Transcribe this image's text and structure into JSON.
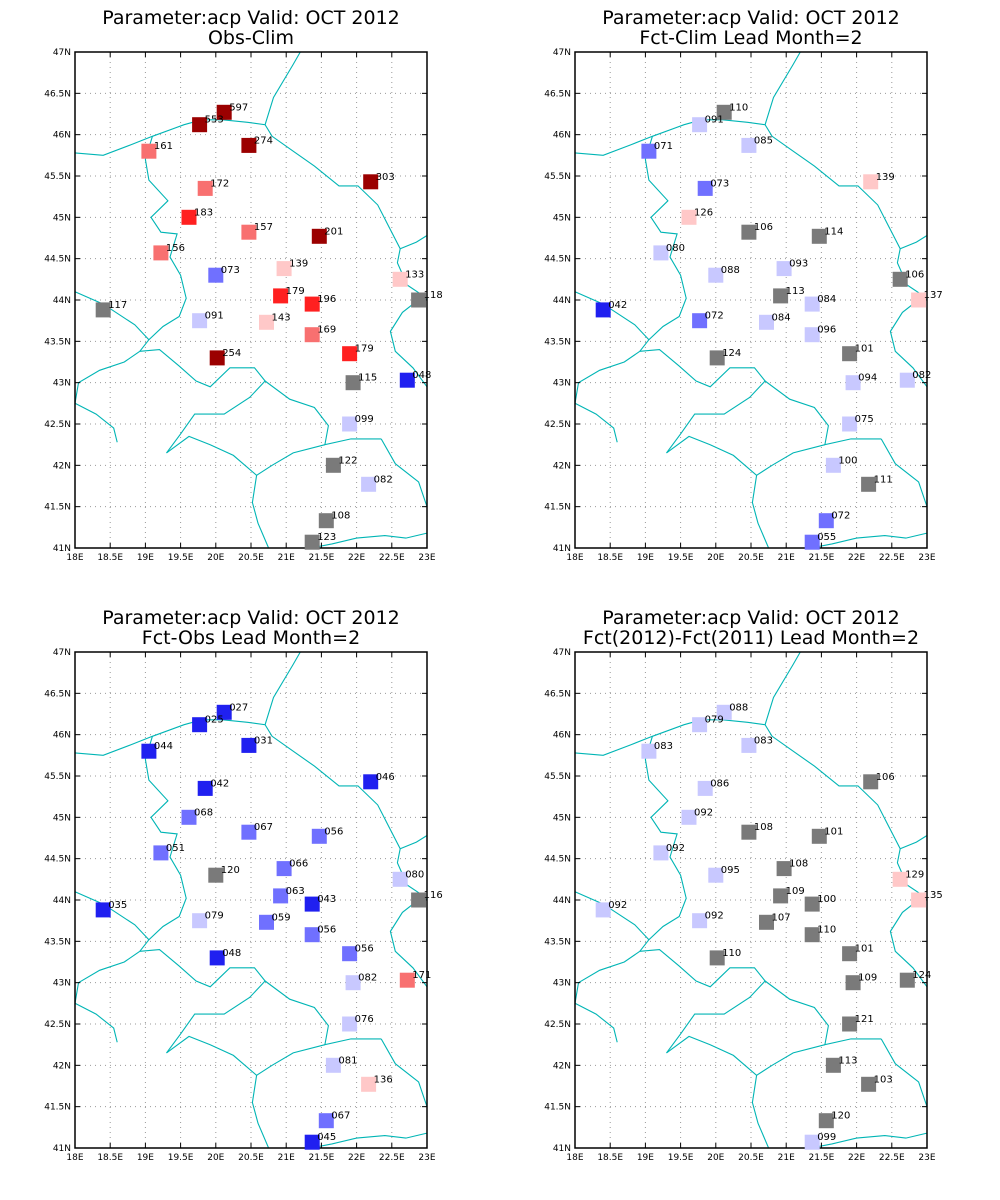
{
  "colors": {
    "strong_red": "#9b0000",
    "red": "#ff2020",
    "salmon": "#f87070",
    "pink": "#ffc8c8",
    "light_blue": "#c8c8ff",
    "mid_blue": "#7070ff",
    "blue": "#2020f0",
    "neutral": "#7a7a7a",
    "border": "#00b5b5"
  },
  "axes": {
    "lon_range": [
      18,
      23
    ],
    "lat_range": [
      41,
      47
    ],
    "lon_ticks": [
      "18E",
      "18.5E",
      "19E",
      "19.5E",
      "20E",
      "20.5E",
      "21E",
      "21.5E",
      "22E",
      "22.5E",
      "23E"
    ],
    "lat_ticks": [
      "41N",
      "41.5N",
      "42N",
      "42.5N",
      "43N",
      "43.5N",
      "44N",
      "44.5N",
      "45N",
      "45.5N",
      "46N",
      "46.5N",
      "47N"
    ]
  },
  "panels": [
    {
      "title_line1": "Parameter:acp Valid: OCT 2012",
      "title_line2": "Obs-Clim",
      "stations": [
        {
          "lon": 20.12,
          "lat": 46.27,
          "label": "597",
          "color": "strong_red"
        },
        {
          "lon": 19.77,
          "lat": 46.12,
          "label": "553",
          "color": "strong_red"
        },
        {
          "lon": 20.47,
          "lat": 45.87,
          "label": "274",
          "color": "strong_red"
        },
        {
          "lon": 19.05,
          "lat": 45.8,
          "label": "161",
          "color": "salmon"
        },
        {
          "lon": 22.2,
          "lat": 45.43,
          "label": "303",
          "color": "strong_red"
        },
        {
          "lon": 19.85,
          "lat": 45.35,
          "label": "172",
          "color": "salmon"
        },
        {
          "lon": 19.62,
          "lat": 45.0,
          "label": "183",
          "color": "red"
        },
        {
          "lon": 20.47,
          "lat": 44.82,
          "label": "157",
          "color": "salmon"
        },
        {
          "lon": 21.47,
          "lat": 44.77,
          "label": "201",
          "color": "strong_red"
        },
        {
          "lon": 19.22,
          "lat": 44.57,
          "label": "156",
          "color": "salmon"
        },
        {
          "lon": 20.0,
          "lat": 44.3,
          "label": "073",
          "color": "mid_blue"
        },
        {
          "lon": 20.97,
          "lat": 44.38,
          "label": "139",
          "color": "pink"
        },
        {
          "lon": 22.62,
          "lat": 44.25,
          "label": "133",
          "color": "pink"
        },
        {
          "lon": 20.92,
          "lat": 44.05,
          "label": "179",
          "color": "red"
        },
        {
          "lon": 21.37,
          "lat": 43.95,
          "label": "196",
          "color": "red"
        },
        {
          "lon": 22.88,
          "lat": 44.0,
          "label": "118",
          "color": "neutral"
        },
        {
          "lon": 18.4,
          "lat": 43.88,
          "label": "117",
          "color": "neutral"
        },
        {
          "lon": 19.77,
          "lat": 43.75,
          "label": "091",
          "color": "light_blue"
        },
        {
          "lon": 20.72,
          "lat": 43.73,
          "label": "143",
          "color": "pink"
        },
        {
          "lon": 21.37,
          "lat": 43.58,
          "label": "169",
          "color": "salmon"
        },
        {
          "lon": 21.9,
          "lat": 43.35,
          "label": "179",
          "color": "red"
        },
        {
          "lon": 20.02,
          "lat": 43.3,
          "label": "254",
          "color": "strong_red"
        },
        {
          "lon": 21.95,
          "lat": 43.0,
          "label": "115",
          "color": "neutral"
        },
        {
          "lon": 22.72,
          "lat": 43.03,
          "label": "048",
          "color": "blue"
        },
        {
          "lon": 21.9,
          "lat": 42.5,
          "label": "099",
          "color": "light_blue"
        },
        {
          "lon": 21.67,
          "lat": 42.0,
          "label": "122",
          "color": "neutral"
        },
        {
          "lon": 22.17,
          "lat": 41.77,
          "label": "082",
          "color": "light_blue"
        },
        {
          "lon": 21.57,
          "lat": 41.33,
          "label": "108",
          "color": "neutral"
        },
        {
          "lon": 21.37,
          "lat": 41.07,
          "label": "123",
          "color": "neutral"
        }
      ]
    },
    {
      "title_line1": "Parameter:acp Valid: OCT 2012",
      "title_line2": "Fct-Clim Lead Month=2",
      "stations": [
        {
          "lon": 20.12,
          "lat": 46.27,
          "label": "110",
          "color": "neutral"
        },
        {
          "lon": 19.77,
          "lat": 46.12,
          "label": "091",
          "color": "light_blue"
        },
        {
          "lon": 20.47,
          "lat": 45.87,
          "label": "085",
          "color": "light_blue"
        },
        {
          "lon": 19.05,
          "lat": 45.8,
          "label": "071",
          "color": "mid_blue"
        },
        {
          "lon": 22.2,
          "lat": 45.43,
          "label": "139",
          "color": "pink"
        },
        {
          "lon": 19.85,
          "lat": 45.35,
          "label": "073",
          "color": "mid_blue"
        },
        {
          "lon": 19.62,
          "lat": 45.0,
          "label": "126",
          "color": "pink"
        },
        {
          "lon": 20.47,
          "lat": 44.82,
          "label": "106",
          "color": "neutral"
        },
        {
          "lon": 21.47,
          "lat": 44.77,
          "label": "114",
          "color": "neutral"
        },
        {
          "lon": 19.22,
          "lat": 44.57,
          "label": "080",
          "color": "light_blue"
        },
        {
          "lon": 20.0,
          "lat": 44.3,
          "label": "088",
          "color": "light_blue"
        },
        {
          "lon": 20.97,
          "lat": 44.38,
          "label": "093",
          "color": "light_blue"
        },
        {
          "lon": 22.62,
          "lat": 44.25,
          "label": "106",
          "color": "neutral"
        },
        {
          "lon": 20.92,
          "lat": 44.05,
          "label": "113",
          "color": "neutral"
        },
        {
          "lon": 21.37,
          "lat": 43.95,
          "label": "084",
          "color": "light_blue"
        },
        {
          "lon": 22.88,
          "lat": 44.0,
          "label": "137",
          "color": "pink"
        },
        {
          "lon": 18.4,
          "lat": 43.88,
          "label": "042",
          "color": "blue"
        },
        {
          "lon": 19.77,
          "lat": 43.75,
          "label": "072",
          "color": "mid_blue"
        },
        {
          "lon": 20.72,
          "lat": 43.73,
          "label": "084",
          "color": "light_blue"
        },
        {
          "lon": 21.37,
          "lat": 43.58,
          "label": "096",
          "color": "light_blue"
        },
        {
          "lon": 21.9,
          "lat": 43.35,
          "label": "101",
          "color": "neutral"
        },
        {
          "lon": 20.02,
          "lat": 43.3,
          "label": "124",
          "color": "neutral"
        },
        {
          "lon": 21.95,
          "lat": 43.0,
          "label": "094",
          "color": "light_blue"
        },
        {
          "lon": 22.72,
          "lat": 43.03,
          "label": "082",
          "color": "light_blue"
        },
        {
          "lon": 21.9,
          "lat": 42.5,
          "label": "075",
          "color": "light_blue"
        },
        {
          "lon": 21.67,
          "lat": 42.0,
          "label": "100",
          "color": "light_blue"
        },
        {
          "lon": 22.17,
          "lat": 41.77,
          "label": "111",
          "color": "neutral"
        },
        {
          "lon": 21.57,
          "lat": 41.33,
          "label": "072",
          "color": "mid_blue"
        },
        {
          "lon": 21.37,
          "lat": 41.07,
          "label": "055",
          "color": "mid_blue"
        }
      ]
    },
    {
      "title_line1": "Parameter:acp Valid: OCT 2012",
      "title_line2": "Fct-Obs Lead Month=2",
      "stations": [
        {
          "lon": 20.12,
          "lat": 46.27,
          "label": "027",
          "color": "blue"
        },
        {
          "lon": 19.77,
          "lat": 46.12,
          "label": "025",
          "color": "blue"
        },
        {
          "lon": 20.47,
          "lat": 45.87,
          "label": "031",
          "color": "blue"
        },
        {
          "lon": 19.05,
          "lat": 45.8,
          "label": "044",
          "color": "blue"
        },
        {
          "lon": 22.2,
          "lat": 45.43,
          "label": "046",
          "color": "blue"
        },
        {
          "lon": 19.85,
          "lat": 45.35,
          "label": "042",
          "color": "blue"
        },
        {
          "lon": 19.62,
          "lat": 45.0,
          "label": "068",
          "color": "mid_blue"
        },
        {
          "lon": 20.47,
          "lat": 44.82,
          "label": "067",
          "color": "mid_blue"
        },
        {
          "lon": 21.47,
          "lat": 44.77,
          "label": "056",
          "color": "mid_blue"
        },
        {
          "lon": 19.22,
          "lat": 44.57,
          "label": "051",
          "color": "mid_blue"
        },
        {
          "lon": 20.0,
          "lat": 44.3,
          "label": "120",
          "color": "neutral"
        },
        {
          "lon": 20.97,
          "lat": 44.38,
          "label": "066",
          "color": "mid_blue"
        },
        {
          "lon": 22.62,
          "lat": 44.25,
          "label": "080",
          "color": "light_blue"
        },
        {
          "lon": 20.92,
          "lat": 44.05,
          "label": "063",
          "color": "mid_blue"
        },
        {
          "lon": 21.37,
          "lat": 43.95,
          "label": "043",
          "color": "blue"
        },
        {
          "lon": 22.88,
          "lat": 44.0,
          "label": "116",
          "color": "neutral"
        },
        {
          "lon": 18.4,
          "lat": 43.88,
          "label": "035",
          "color": "blue"
        },
        {
          "lon": 19.77,
          "lat": 43.75,
          "label": "079",
          "color": "light_blue"
        },
        {
          "lon": 20.72,
          "lat": 43.73,
          "label": "059",
          "color": "mid_blue"
        },
        {
          "lon": 21.37,
          "lat": 43.58,
          "label": "056",
          "color": "mid_blue"
        },
        {
          "lon": 21.9,
          "lat": 43.35,
          "label": "056",
          "color": "mid_blue"
        },
        {
          "lon": 20.02,
          "lat": 43.3,
          "label": "048",
          "color": "blue"
        },
        {
          "lon": 21.95,
          "lat": 43.0,
          "label": "082",
          "color": "light_blue"
        },
        {
          "lon": 22.72,
          "lat": 43.03,
          "label": "171",
          "color": "salmon"
        },
        {
          "lon": 21.9,
          "lat": 42.5,
          "label": "076",
          "color": "light_blue"
        },
        {
          "lon": 21.67,
          "lat": 42.0,
          "label": "081",
          "color": "light_blue"
        },
        {
          "lon": 22.17,
          "lat": 41.77,
          "label": "136",
          "color": "pink"
        },
        {
          "lon": 21.57,
          "lat": 41.33,
          "label": "067",
          "color": "mid_blue"
        },
        {
          "lon": 21.37,
          "lat": 41.07,
          "label": "045",
          "color": "blue"
        }
      ]
    },
    {
      "title_line1": "Parameter:acp Valid: OCT 2012",
      "title_line2": "Fct(2012)-Fct(2011) Lead Month=2",
      "stations": [
        {
          "lon": 20.12,
          "lat": 46.27,
          "label": "088",
          "color": "light_blue"
        },
        {
          "lon": 19.77,
          "lat": 46.12,
          "label": "079",
          "color": "light_blue"
        },
        {
          "lon": 20.47,
          "lat": 45.87,
          "label": "083",
          "color": "light_blue"
        },
        {
          "lon": 19.05,
          "lat": 45.8,
          "label": "083",
          "color": "light_blue"
        },
        {
          "lon": 22.2,
          "lat": 45.43,
          "label": "106",
          "color": "neutral"
        },
        {
          "lon": 19.85,
          "lat": 45.35,
          "label": "086",
          "color": "light_blue"
        },
        {
          "lon": 19.62,
          "lat": 45.0,
          "label": "092",
          "color": "light_blue"
        },
        {
          "lon": 20.47,
          "lat": 44.82,
          "label": "108",
          "color": "neutral"
        },
        {
          "lon": 21.47,
          "lat": 44.77,
          "label": "101",
          "color": "neutral"
        },
        {
          "lon": 19.22,
          "lat": 44.57,
          "label": "092",
          "color": "light_blue"
        },
        {
          "lon": 20.0,
          "lat": 44.3,
          "label": "095",
          "color": "light_blue"
        },
        {
          "lon": 20.97,
          "lat": 44.38,
          "label": "108",
          "color": "neutral"
        },
        {
          "lon": 22.62,
          "lat": 44.25,
          "label": "129",
          "color": "pink"
        },
        {
          "lon": 20.92,
          "lat": 44.05,
          "label": "109",
          "color": "neutral"
        },
        {
          "lon": 21.37,
          "lat": 43.95,
          "label": "100",
          "color": "neutral"
        },
        {
          "lon": 22.88,
          "lat": 44.0,
          "label": "135",
          "color": "pink"
        },
        {
          "lon": 18.4,
          "lat": 43.88,
          "label": "092",
          "color": "light_blue"
        },
        {
          "lon": 19.77,
          "lat": 43.75,
          "label": "092",
          "color": "light_blue"
        },
        {
          "lon": 20.72,
          "lat": 43.73,
          "label": "107",
          "color": "neutral"
        },
        {
          "lon": 21.37,
          "lat": 43.58,
          "label": "110",
          "color": "neutral"
        },
        {
          "lon": 21.9,
          "lat": 43.35,
          "label": "101",
          "color": "neutral"
        },
        {
          "lon": 20.02,
          "lat": 43.3,
          "label": "110",
          "color": "neutral"
        },
        {
          "lon": 21.95,
          "lat": 43.0,
          "label": "109",
          "color": "neutral"
        },
        {
          "lon": 22.72,
          "lat": 43.03,
          "label": "124",
          "color": "neutral"
        },
        {
          "lon": 21.9,
          "lat": 42.5,
          "label": "121",
          "color": "neutral"
        },
        {
          "lon": 21.67,
          "lat": 42.0,
          "label": "113",
          "color": "neutral"
        },
        {
          "lon": 22.17,
          "lat": 41.77,
          "label": "103",
          "color": "neutral"
        },
        {
          "lon": 21.57,
          "lat": 41.33,
          "label": "120",
          "color": "neutral"
        },
        {
          "lon": 21.37,
          "lat": 41.07,
          "label": "099",
          "color": "light_blue"
        }
      ]
    }
  ]
}
